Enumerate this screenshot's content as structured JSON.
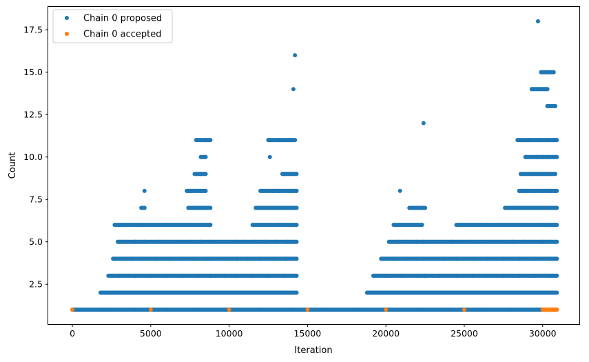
{
  "chart_data": {
    "type": "scatter",
    "title": "",
    "xlabel": "Iteration",
    "ylabel": "Count",
    "xlim": [
      -1540,
      32340
    ],
    "ylim": [
      0.15,
      18.85
    ],
    "xticks": [
      0,
      5000,
      10000,
      15000,
      20000,
      25000,
      30000
    ],
    "xtick_labels": [
      "0",
      "5000",
      "10000",
      "15000",
      "20000",
      "25000",
      "30000"
    ],
    "yticks": [
      2.5,
      5.0,
      7.5,
      10.0,
      12.5,
      15.0,
      17.5
    ],
    "ytick_labels": [
      "2.5",
      "5.0",
      "7.5",
      "10.0",
      "12.5",
      "15.0",
      "17.5"
    ],
    "grid": false,
    "legend_position": "top-left",
    "series": [
      {
        "name": "Chain 0 proposed",
        "color": "#1f77b4",
        "points": [
          [
            0,
            1
          ],
          [
            2000,
            1
          ],
          [
            4000,
            1
          ],
          [
            6000,
            1
          ],
          [
            8000,
            1
          ],
          [
            10000,
            1
          ],
          [
            12000,
            1
          ],
          [
            14000,
            1
          ],
          [
            16000,
            1
          ],
          [
            18000,
            1
          ],
          [
            20000,
            1
          ],
          [
            22000,
            1
          ],
          [
            24000,
            1
          ],
          [
            26000,
            1
          ],
          [
            28000,
            1
          ],
          [
            30000,
            1
          ],
          [
            30900,
            1
          ],
          [
            1800,
            2
          ],
          [
            2500,
            2
          ],
          [
            3500,
            2
          ],
          [
            4500,
            2
          ],
          [
            5500,
            2
          ],
          [
            6500,
            2
          ],
          [
            7500,
            2
          ],
          [
            8500,
            2
          ],
          [
            8800,
            2
          ],
          [
            9600,
            2
          ],
          [
            10500,
            2
          ],
          [
            11500,
            2
          ],
          [
            12500,
            2
          ],
          [
            13500,
            2
          ],
          [
            14300,
            2
          ],
          [
            18800,
            2
          ],
          [
            19500,
            2
          ],
          [
            20500,
            2
          ],
          [
            21500,
            2
          ],
          [
            22500,
            2
          ],
          [
            23500,
            2
          ],
          [
            24500,
            2
          ],
          [
            25500,
            2
          ],
          [
            26500,
            2
          ],
          [
            27500,
            2
          ],
          [
            28500,
            2
          ],
          [
            29500,
            2
          ],
          [
            30500,
            2
          ],
          [
            30900,
            2
          ],
          [
            2300,
            3
          ],
          [
            3000,
            3
          ],
          [
            4000,
            3
          ],
          [
            5000,
            3
          ],
          [
            6000,
            3
          ],
          [
            7000,
            3
          ],
          [
            8000,
            3
          ],
          [
            8800,
            3
          ],
          [
            9700,
            3
          ],
          [
            10500,
            3
          ],
          [
            11500,
            3
          ],
          [
            12500,
            3
          ],
          [
            13500,
            3
          ],
          [
            14300,
            3
          ],
          [
            19200,
            3
          ],
          [
            20000,
            3
          ],
          [
            21000,
            3
          ],
          [
            22000,
            3
          ],
          [
            22500,
            3
          ],
          [
            23400,
            3
          ],
          [
            24500,
            3
          ],
          [
            25500,
            3
          ],
          [
            26500,
            3
          ],
          [
            27500,
            3
          ],
          [
            28500,
            3
          ],
          [
            29500,
            3
          ],
          [
            30500,
            3
          ],
          [
            30900,
            3
          ],
          [
            2600,
            4
          ],
          [
            3200,
            4
          ],
          [
            3800,
            4
          ],
          [
            4500,
            4
          ],
          [
            5400,
            4
          ],
          [
            6200,
            4
          ],
          [
            7000,
            4
          ],
          [
            7800,
            4
          ],
          [
            8500,
            4
          ],
          [
            8800,
            4
          ],
          [
            10000,
            4
          ],
          [
            10500,
            4
          ],
          [
            11200,
            4
          ],
          [
            12000,
            4
          ],
          [
            12800,
            4
          ],
          [
            13600,
            4
          ],
          [
            14300,
            4
          ],
          [
            19700,
            4
          ],
          [
            20500,
            4
          ],
          [
            21300,
            4
          ],
          [
            22000,
            4
          ],
          [
            22400,
            4
          ],
          [
            23700,
            4
          ],
          [
            24500,
            4
          ],
          [
            25500,
            4
          ],
          [
            26500,
            4
          ],
          [
            27500,
            4
          ],
          [
            28500,
            4
          ],
          [
            29500,
            4
          ],
          [
            30500,
            4
          ],
          [
            30900,
            4
          ],
          [
            2900,
            5
          ],
          [
            3400,
            5
          ],
          [
            4000,
            5
          ],
          [
            4600,
            5
          ],
          [
            5500,
            5
          ],
          [
            6100,
            5
          ],
          [
            6800,
            5
          ],
          [
            7500,
            5
          ],
          [
            8200,
            5
          ],
          [
            8800,
            5
          ],
          [
            10500,
            5
          ],
          [
            11000,
            5
          ],
          [
            11600,
            5
          ],
          [
            12300,
            5
          ],
          [
            13000,
            5
          ],
          [
            13700,
            5
          ],
          [
            14300,
            5
          ],
          [
            20200,
            5
          ],
          [
            20800,
            5
          ],
          [
            21400,
            5
          ],
          [
            22000,
            5
          ],
          [
            22400,
            5
          ],
          [
            24200,
            5
          ],
          [
            24800,
            5
          ],
          [
            25400,
            5
          ],
          [
            26000,
            5
          ],
          [
            26700,
            5
          ],
          [
            27400,
            5
          ],
          [
            28100,
            5
          ],
          [
            28800,
            5
          ],
          [
            29400,
            5
          ],
          [
            30000,
            5
          ],
          [
            30500,
            5
          ],
          [
            30900,
            5
          ],
          [
            2700,
            6
          ],
          [
            3400,
            6
          ],
          [
            3800,
            6
          ],
          [
            4200,
            6
          ],
          [
            4500,
            6
          ],
          [
            6000,
            6
          ],
          [
            6500,
            6
          ],
          [
            7000,
            6
          ],
          [
            7600,
            6
          ],
          [
            8200,
            6
          ],
          [
            8800,
            6
          ],
          [
            11500,
            6
          ],
          [
            12000,
            6
          ],
          [
            12500,
            6
          ],
          [
            13200,
            6
          ],
          [
            13700,
            6
          ],
          [
            14300,
            6
          ],
          [
            20500,
            6
          ],
          [
            21000,
            6
          ],
          [
            21500,
            6
          ],
          [
            22000,
            6
          ],
          [
            22300,
            6
          ],
          [
            24500,
            6
          ],
          [
            25000,
            6
          ],
          [
            26000,
            6
          ],
          [
            26500,
            6
          ],
          [
            27200,
            6
          ],
          [
            27800,
            6
          ],
          [
            28400,
            6
          ],
          [
            29000,
            6
          ],
          [
            29600,
            6
          ],
          [
            30200,
            6
          ],
          [
            30700,
            6
          ],
          [
            30900,
            6
          ],
          [
            4400,
            7
          ],
          [
            4600,
            7
          ],
          [
            7400,
            7
          ],
          [
            8200,
            7
          ],
          [
            8800,
            7
          ],
          [
            11700,
            7
          ],
          [
            12200,
            7
          ],
          [
            12800,
            7
          ],
          [
            13300,
            7
          ],
          [
            14000,
            7
          ],
          [
            14300,
            7
          ],
          [
            21500,
            7
          ],
          [
            21800,
            7
          ],
          [
            22200,
            7
          ],
          [
            22500,
            7
          ],
          [
            27600,
            7
          ],
          [
            28200,
            7
          ],
          [
            28800,
            7
          ],
          [
            29400,
            7
          ],
          [
            30000,
            7
          ],
          [
            30500,
            7
          ],
          [
            30900,
            7
          ],
          [
            4600,
            8
          ],
          [
            7300,
            8
          ],
          [
            7500,
            8
          ],
          [
            8200,
            8
          ],
          [
            8500,
            8
          ],
          [
            12000,
            8
          ],
          [
            12800,
            8
          ],
          [
            13200,
            8
          ],
          [
            13800,
            8
          ],
          [
            14300,
            8
          ],
          [
            20900,
            8
          ],
          [
            28500,
            8
          ],
          [
            28700,
            8
          ],
          [
            29500,
            8
          ],
          [
            30000,
            8
          ],
          [
            30500,
            8
          ],
          [
            30900,
            8
          ],
          [
            7800,
            9
          ],
          [
            8200,
            9
          ],
          [
            8500,
            9
          ],
          [
            13400,
            9
          ],
          [
            13600,
            9
          ],
          [
            14100,
            9
          ],
          [
            14300,
            9
          ],
          [
            28600,
            9
          ],
          [
            29300,
            9
          ],
          [
            29800,
            9
          ],
          [
            30400,
            9
          ],
          [
            30800,
            9
          ],
          [
            8200,
            10
          ],
          [
            8500,
            10
          ],
          [
            12600,
            10
          ],
          [
            28900,
            10
          ],
          [
            29600,
            10
          ],
          [
            30000,
            10
          ],
          [
            30400,
            10
          ],
          [
            30900,
            10
          ],
          [
            7900,
            11
          ],
          [
            8500,
            11
          ],
          [
            8800,
            11
          ],
          [
            12500,
            11
          ],
          [
            13200,
            11
          ],
          [
            13900,
            11
          ],
          [
            14200,
            11
          ],
          [
            28400,
            11
          ],
          [
            29100,
            11
          ],
          [
            29800,
            11
          ],
          [
            30300,
            11
          ],
          [
            30700,
            11
          ],
          [
            30900,
            11
          ],
          [
            22400,
            12
          ],
          [
            30300,
            13
          ],
          [
            30800,
            13
          ],
          [
            14100,
            14
          ],
          [
            29300,
            14
          ],
          [
            30300,
            14
          ],
          [
            29900,
            15
          ],
          [
            30700,
            15
          ],
          [
            14200,
            16
          ],
          [
            29700,
            18
          ]
        ]
      },
      {
        "name": "Chain 0 accepted",
        "color": "#ff7f0e",
        "points": [
          [
            0,
            1
          ],
          [
            5000,
            1
          ],
          [
            10000,
            1
          ],
          [
            15000,
            1
          ],
          [
            20000,
            1
          ],
          [
            25000,
            1
          ],
          [
            30000,
            1
          ],
          [
            30900,
            1
          ]
        ]
      }
    ]
  }
}
